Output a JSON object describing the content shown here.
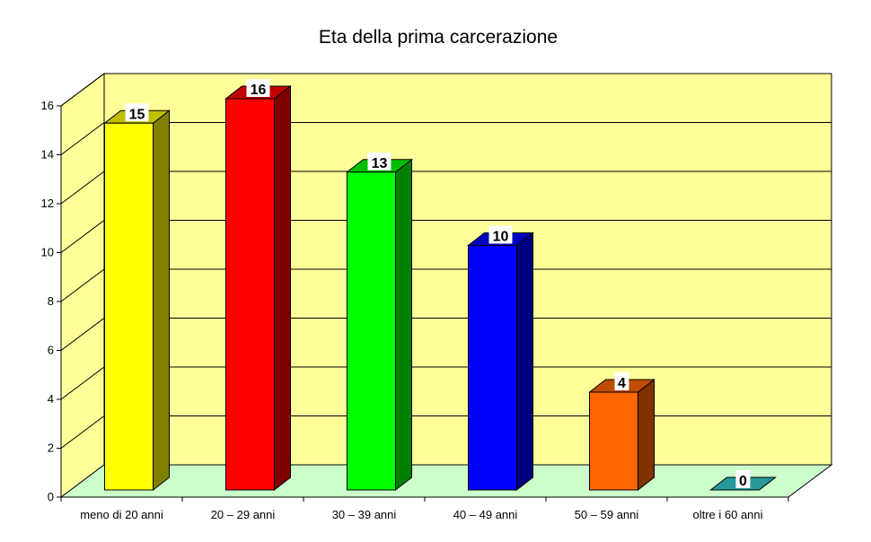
{
  "chart_data": {
    "type": "bar",
    "title": "Eta della prima carcerazione",
    "xlabel": "",
    "ylabel": "",
    "categories": [
      "meno di 20 anni",
      "20 – 29 anni",
      "30 – 39 anni",
      "40 – 49 anni",
      "50 – 59 anni",
      "oltre i 60 anni"
    ],
    "values": [
      15,
      16,
      13,
      10,
      4,
      0
    ],
    "data_labels": [
      "15",
      "16",
      "13",
      "10",
      "4",
      "0"
    ],
    "bar_colors": [
      "#FFFF00",
      "#FF0000",
      "#00FF00",
      "#0000FF",
      "#FF6600",
      "#33CCCC"
    ],
    "ylim": [
      0,
      16
    ],
    "yticks": [
      0,
      2,
      4,
      6,
      8,
      10,
      12,
      14,
      16
    ],
    "ytick_labels": [
      "0",
      "2",
      "4",
      "6",
      "8",
      "10",
      "12",
      "14",
      "16"
    ],
    "grid": true,
    "legend": "none",
    "style": "3d-column",
    "wall_color": "#FFFF99",
    "floor_color": "#CCFFCC"
  }
}
